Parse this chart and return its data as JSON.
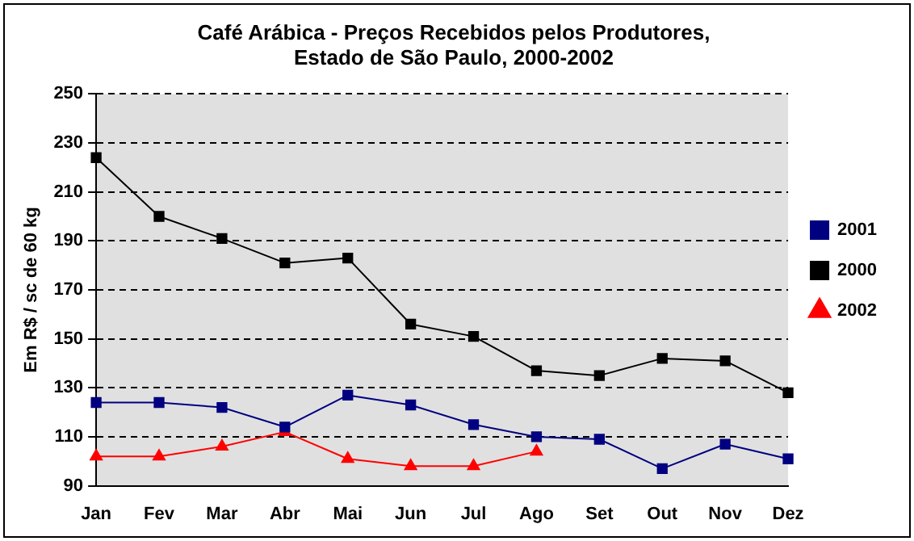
{
  "chart_data": {
    "type": "line",
    "title": "Café Arábica - Preços Recebidos pelos Produtores,\nEstado de São Paulo, 2000-2002",
    "ylabel": "Em R$ / sc de 60 kg",
    "categories": [
      "Jan",
      "Fev",
      "Mar",
      "Abr",
      "Mai",
      "Jun",
      "Jul",
      "Ago",
      "Set",
      "Out",
      "Nov",
      "Dez"
    ],
    "series": [
      {
        "name": "2001",
        "color": "#000080",
        "marker": "square",
        "values": [
          124,
          124,
          122,
          114,
          127,
          123,
          115,
          110,
          109,
          97,
          107,
          101
        ]
      },
      {
        "name": "2000",
        "color": "#000000",
        "marker": "square",
        "values": [
          224,
          200,
          191,
          181,
          183,
          156,
          151,
          137,
          135,
          142,
          141,
          128
        ]
      },
      {
        "name": "2002",
        "color": "#ff0000",
        "marker": "triangle",
        "values": [
          102,
          102,
          106,
          112,
          101,
          98,
          98,
          104,
          null,
          null,
          null,
          null
        ]
      }
    ],
    "ylim": [
      90,
      250
    ],
    "yticks": [
      90,
      110,
      130,
      150,
      170,
      190,
      210,
      230,
      250
    ],
    "grid": "y",
    "legend": "right",
    "line_style": "solid"
  }
}
